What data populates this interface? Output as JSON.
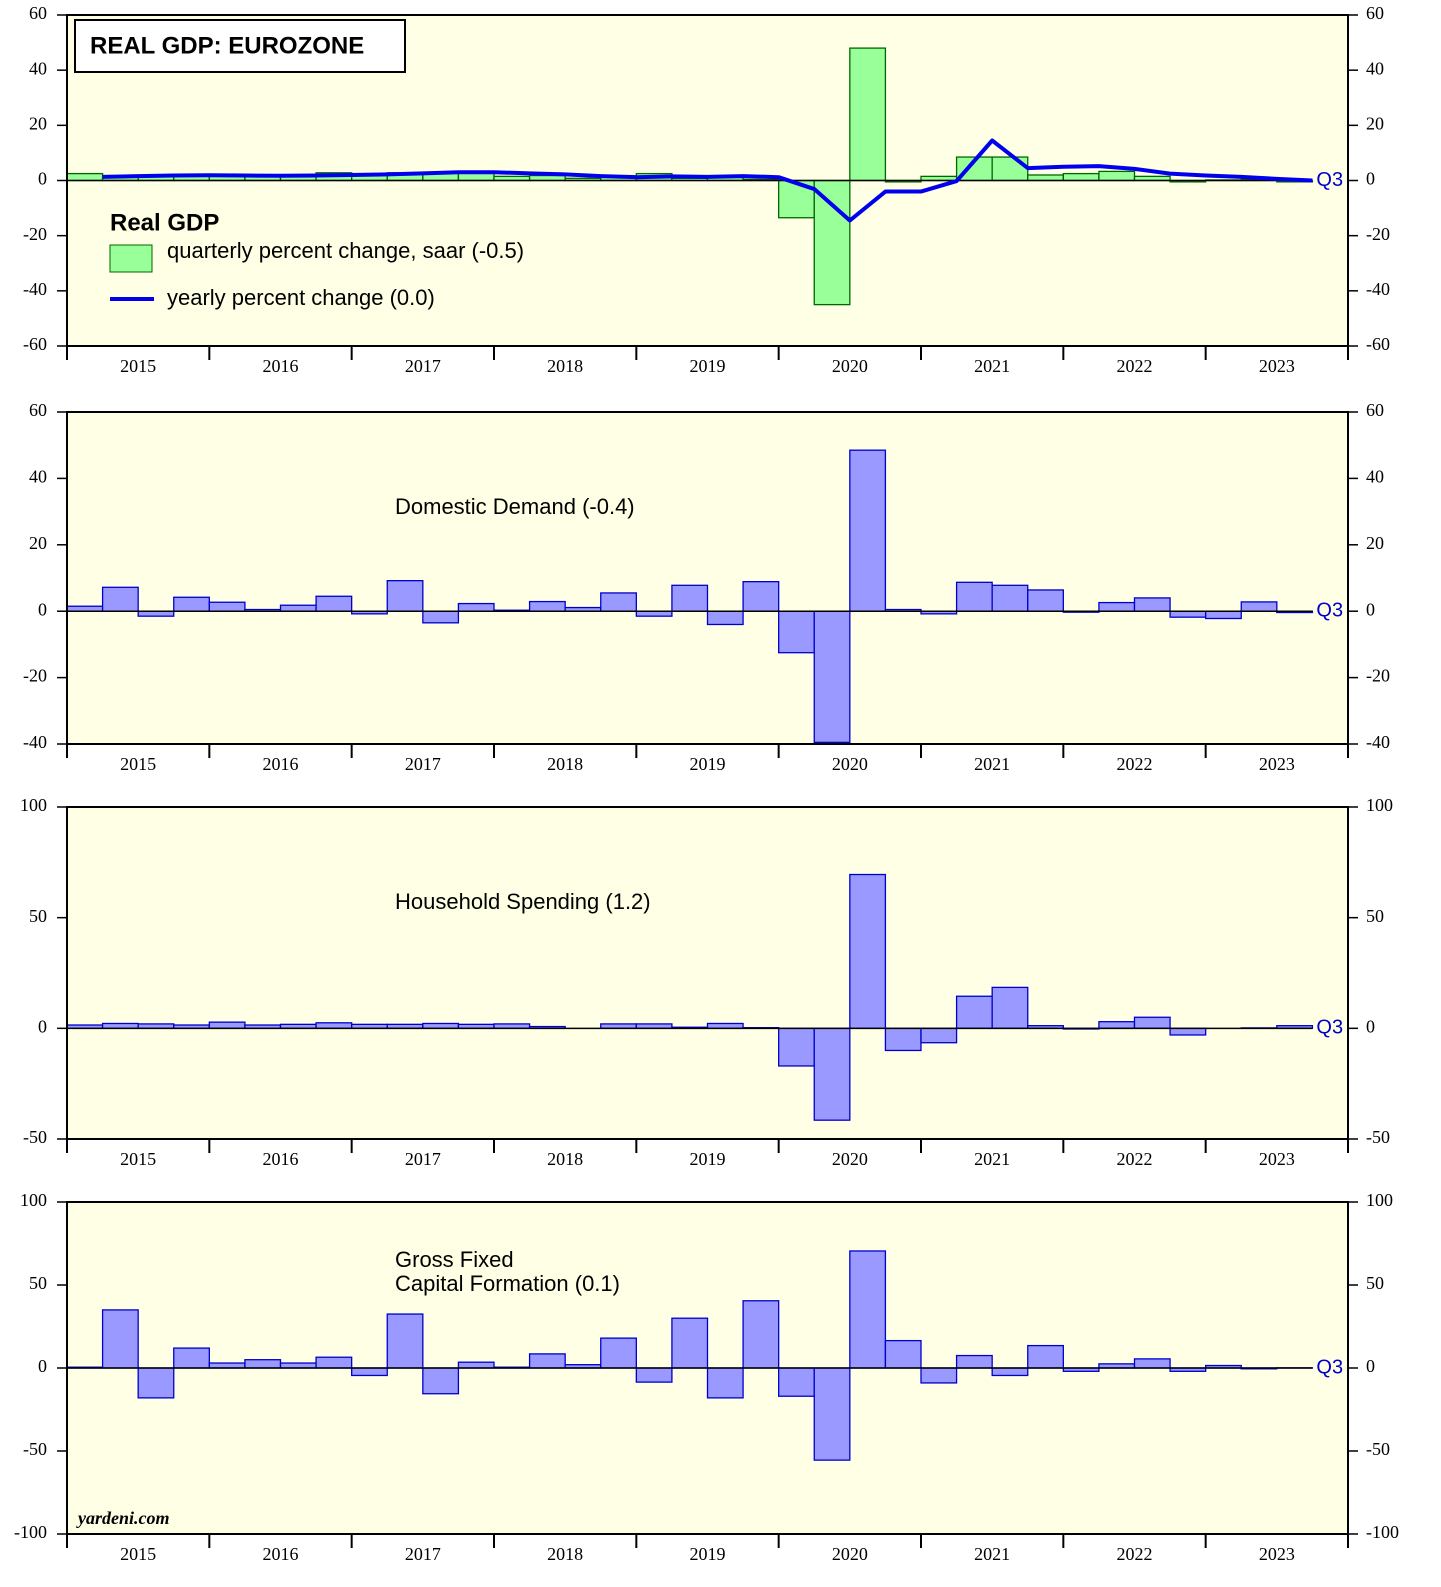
{
  "chart_data": [
    {
      "type": "combo",
      "title": "REAL GDP: EUROZONE",
      "legend_title": "Real GDP",
      "x_labels": [
        "2015",
        "2016",
        "2017",
        "2018",
        "2019",
        "2020",
        "2021",
        "2022",
        "2023"
      ],
      "end_label": "Q3",
      "ylim": [
        -60,
        60
      ],
      "yticks": [
        -60,
        -40,
        -20,
        0,
        20,
        40,
        60
      ],
      "series": [
        {
          "name": "quarterly percent change, saar (-0.5)",
          "type": "bar",
          "color": "#99ff99",
          "edge": "#006600",
          "values": [
            2.5,
            1.5,
            1.5,
            1.8,
            2.0,
            1.5,
            2.0,
            2.8,
            2.5,
            2.8,
            2.8,
            3.0,
            1.5,
            1.8,
            0.8,
            1.5,
            2.5,
            0.8,
            1.2,
            0.4,
            -13.5,
            -45,
            48,
            -0.5,
            1.5,
            8.5,
            8.5,
            2.0,
            2.5,
            3.3,
            1.5,
            -0.5,
            0.2,
            0.5,
            -0.5
          ]
        },
        {
          "name": "yearly percent change (0.0)",
          "type": "line",
          "color": "#0000ee",
          "values": [
            1.3,
            1.6,
            1.8,
            1.9,
            1.8,
            1.7,
            1.8,
            2.0,
            2.2,
            2.6,
            3.0,
            3.0,
            2.6,
            2.2,
            1.6,
            1.2,
            1.5,
            1.3,
            1.6,
            1.2,
            -3.1,
            -14.5,
            -4.0,
            -4.0,
            -0.2,
            14.5,
            4.5,
            5.0,
            5.2,
            4.2,
            2.5,
            1.8,
            1.3,
            0.6,
            0.0
          ]
        }
      ]
    },
    {
      "type": "bar",
      "label": [
        "Domestic Demand (-0.4)"
      ],
      "x_labels": [
        "2015",
        "2016",
        "2017",
        "2018",
        "2019",
        "2020",
        "2021",
        "2022",
        "2023"
      ],
      "end_label": "Q3",
      "ylim": [
        -40,
        60
      ],
      "yticks": [
        -40,
        -20,
        0,
        20,
        40,
        60
      ],
      "series": [
        {
          "type": "bar",
          "color": "#9999ff",
          "edge": "#0000cc",
          "values": [
            1.5,
            7.2,
            -1.5,
            4.2,
            2.7,
            0.5,
            1.8,
            4.5,
            -0.8,
            9.2,
            -3.5,
            2.3,
            0.3,
            2.9,
            1.1,
            5.5,
            -1.5,
            7.8,
            -4.0,
            8.9,
            -12.5,
            -39.5,
            48.5,
            0.5,
            -0.8,
            8.7,
            7.8,
            6.4,
            -0.3,
            2.6,
            4.0,
            -1.8,
            -2.2,
            2.8,
            -0.4
          ]
        }
      ]
    },
    {
      "type": "bar",
      "label": [
        "Household Spending (1.2)"
      ],
      "x_labels": [
        "2015",
        "2016",
        "2017",
        "2018",
        "2019",
        "2020",
        "2021",
        "2022",
        "2023"
      ],
      "end_label": "Q3",
      "ylim": [
        -50,
        100
      ],
      "yticks": [
        -50,
        0,
        50,
        100
      ],
      "series": [
        {
          "type": "bar",
          "color": "#9999ff",
          "edge": "#0000cc",
          "values": [
            1.5,
            2.2,
            2.0,
            1.5,
            2.8,
            1.5,
            1.8,
            2.5,
            1.8,
            1.8,
            2.2,
            1.8,
            2.0,
            0.8,
            0.0,
            2.0,
            2.0,
            0.5,
            2.2,
            0.3,
            -17,
            -41.5,
            69.5,
            -10,
            -6.5,
            14.5,
            18.5,
            1.2,
            -0.3,
            3.0,
            5.0,
            -3.0,
            0.0,
            0.2,
            1.2
          ]
        }
      ]
    },
    {
      "type": "bar",
      "label": [
        "Gross Fixed",
        "Capital Formation (0.1)"
      ],
      "credit": "yardeni.com",
      "x_labels": [
        "2015",
        "2016",
        "2017",
        "2018",
        "2019",
        "2020",
        "2021",
        "2022",
        "2023"
      ],
      "end_label": "Q3",
      "ylim": [
        -100,
        100
      ],
      "yticks": [
        -100,
        -50,
        0,
        50,
        100
      ],
      "series": [
        {
          "type": "bar",
          "color": "#9999ff",
          "edge": "#0000cc",
          "values": [
            0.5,
            35,
            -18,
            12,
            3,
            5,
            3,
            6.5,
            -4.5,
            32.5,
            -15.5,
            3.5,
            0.5,
            8.5,
            2,
            18,
            -8.5,
            30,
            -18,
            40.5,
            -17,
            -55.5,
            70.5,
            16.5,
            -9,
            7.5,
            -4.5,
            13.5,
            -2,
            2.5,
            5.5,
            -2,
            1.5,
            -0.5,
            0.1
          ]
        }
      ]
    }
  ]
}
